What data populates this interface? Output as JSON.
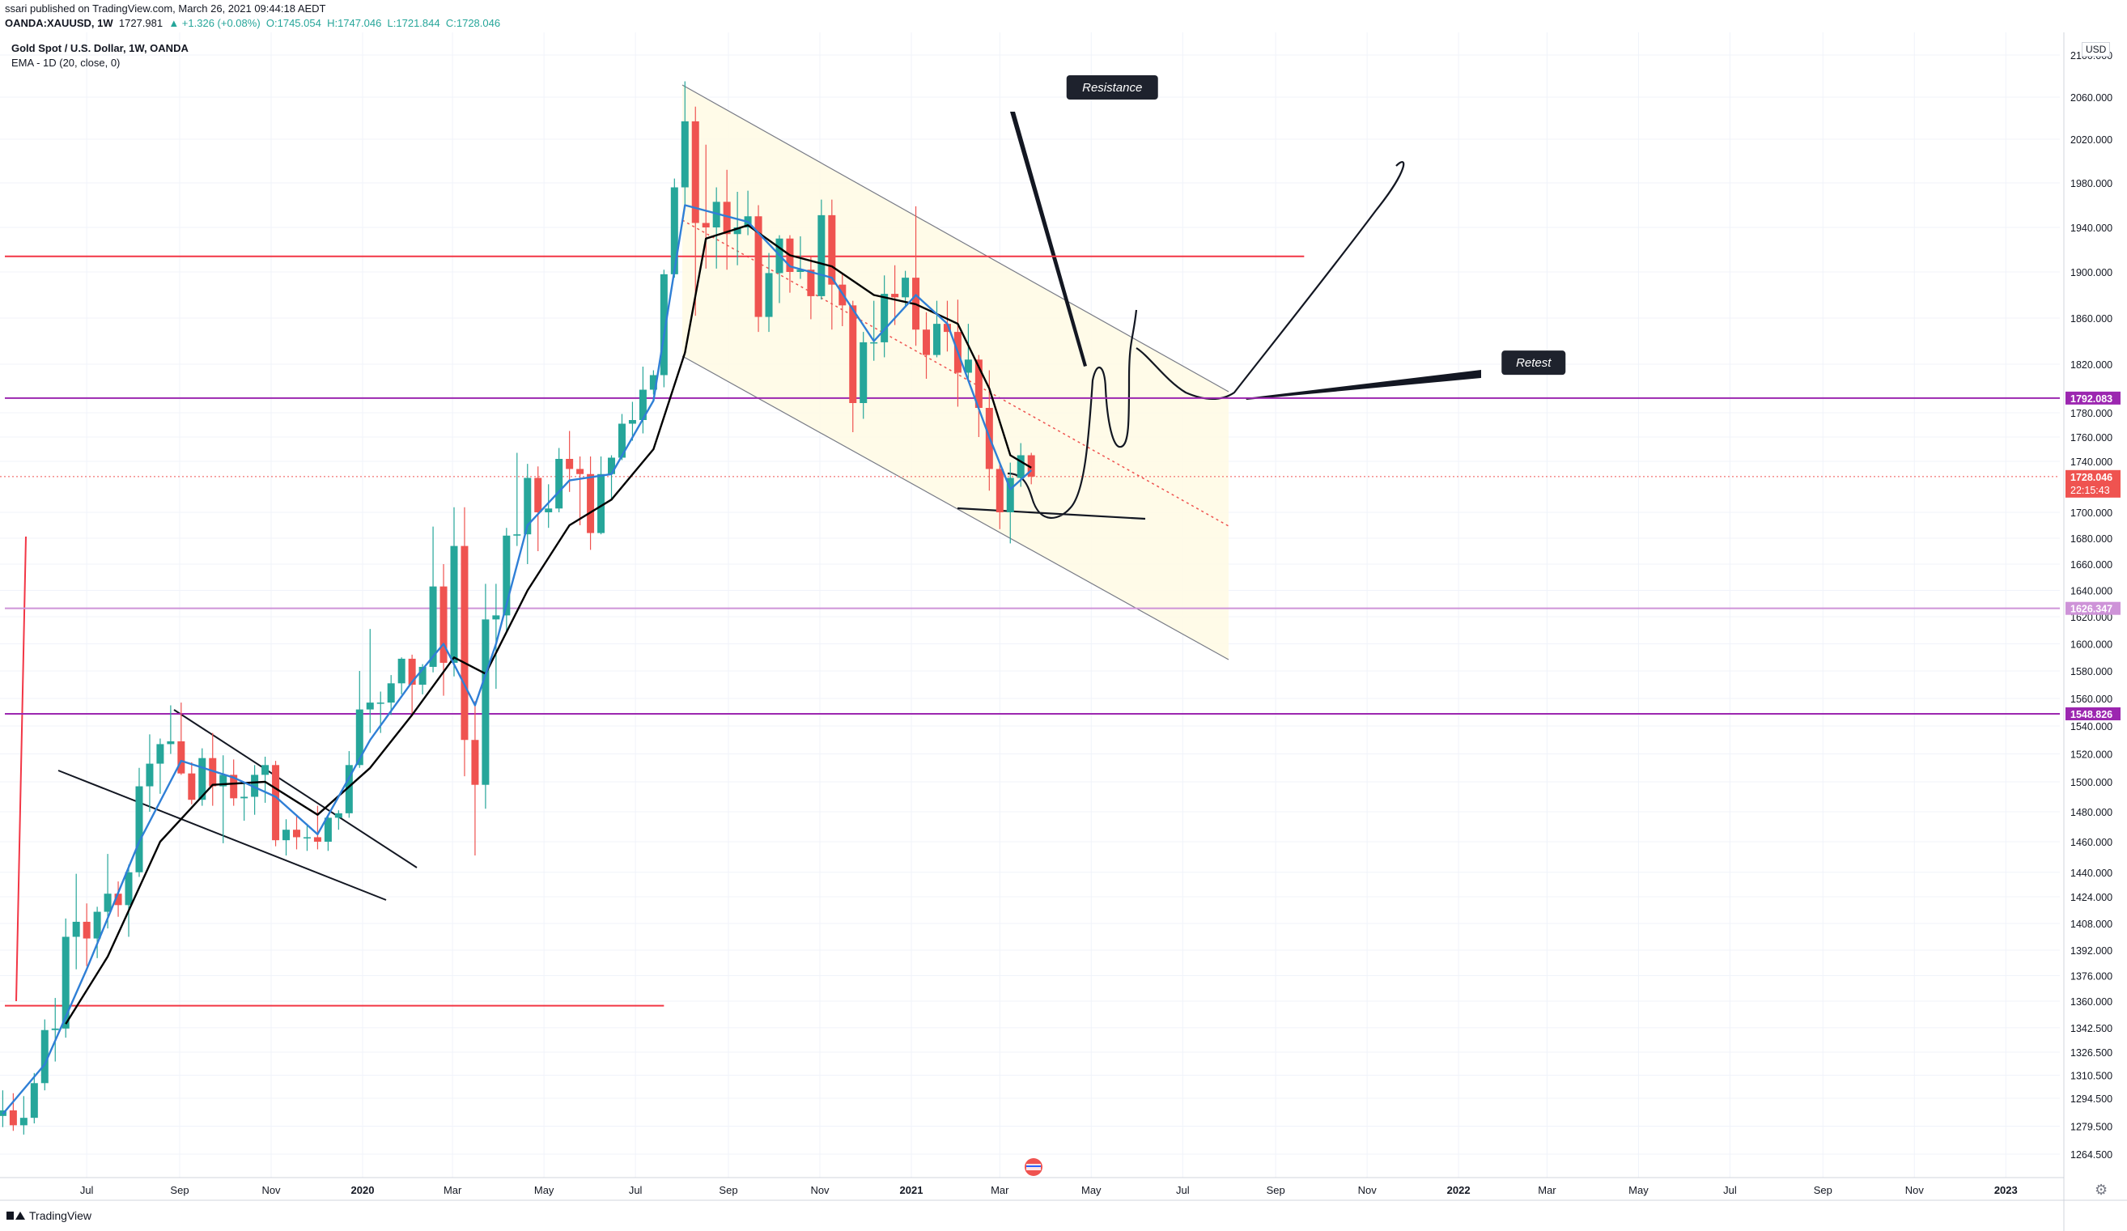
{
  "header": {
    "published": "ssari published on TradingView.com, March 26, 2021 09:44:18 AEDT",
    "symbol": "OANDA:XAUUSD, 1W",
    "last": "1727.981",
    "change": "▲ +1.326 (+0.08%)",
    "open": "O:1745.054",
    "high": "H:1747.046",
    "low": "L:1721.844",
    "close": "C:1728.046"
  },
  "legend": {
    "title": "Gold Spot / U.S. Dollar, 1W, OANDA",
    "ema": "EMA - 1D (20, close, 0)"
  },
  "footer": {
    "brand": "TradingView",
    "currency": "USD"
  },
  "colors": {
    "up": "#26a69a",
    "down": "#ef5350",
    "ema_fast": "#2f7fd6",
    "ema_slow": "#000000",
    "red_line": "#f23645",
    "purple_line": "#9c27b0",
    "channel_fill": "#fffbe6"
  },
  "chart_data": {
    "type": "candlestick",
    "y_axis_labels": [
      {
        "v": 2100,
        "t": "2100.000"
      },
      {
        "v": 2060,
        "t": "2060.000"
      },
      {
        "v": 2020,
        "t": "2020.000"
      },
      {
        "v": 1980,
        "t": "1980.000"
      },
      {
        "v": 1940,
        "t": "1940.000"
      },
      {
        "v": 1900,
        "t": "1900.000"
      },
      {
        "v": 1860,
        "t": "1860.000"
      },
      {
        "v": 1820,
        "t": "1820.000"
      },
      {
        "v": 1780,
        "t": "1780.000"
      },
      {
        "v": 1760,
        "t": "1760.000"
      },
      {
        "v": 1740,
        "t": "1740.000"
      },
      {
        "v": 1700,
        "t": "1700.000"
      },
      {
        "v": 1680,
        "t": "1680.000"
      },
      {
        "v": 1660,
        "t": "1660.000"
      },
      {
        "v": 1640,
        "t": "1640.000"
      },
      {
        "v": 1620,
        "t": "1620.000"
      },
      {
        "v": 1600,
        "t": "1600.000"
      },
      {
        "v": 1580,
        "t": "1580.000"
      },
      {
        "v": 1560,
        "t": "1560.000"
      },
      {
        "v": 1540,
        "t": "1540.000"
      },
      {
        "v": 1520,
        "t": "1520.000"
      },
      {
        "v": 1500,
        "t": "1500.000"
      },
      {
        "v": 1480,
        "t": "1480.000"
      },
      {
        "v": 1460,
        "t": "1460.000"
      },
      {
        "v": 1440,
        "t": "1440.000"
      },
      {
        "v": 1424,
        "t": "1424.000"
      },
      {
        "v": 1408,
        "t": "1408.000"
      },
      {
        "v": 1392,
        "t": "1392.000"
      },
      {
        "v": 1376,
        "t": "1376.000"
      },
      {
        "v": 1360,
        "t": "1360.000"
      },
      {
        "v": 1342.5,
        "t": "1342.500"
      },
      {
        "v": 1326.5,
        "t": "1326.500"
      },
      {
        "v": 1310.5,
        "t": "1310.500"
      },
      {
        "v": 1294.5,
        "t": "1294.500"
      },
      {
        "v": 1279.5,
        "t": "1279.500"
      },
      {
        "v": 1264.5,
        "t": "1264.500"
      }
    ],
    "x_axis_labels": [
      {
        "d": "2019-07-01",
        "t": "Jul"
      },
      {
        "d": "2019-09-01",
        "t": "Sep"
      },
      {
        "d": "2019-11-01",
        "t": "Nov"
      },
      {
        "d": "2020-01-01",
        "t": "2020",
        "bold": true
      },
      {
        "d": "2020-03-01",
        "t": "Mar"
      },
      {
        "d": "2020-05-01",
        "t": "May"
      },
      {
        "d": "2020-07-01",
        "t": "Jul"
      },
      {
        "d": "2020-09-01",
        "t": "Sep"
      },
      {
        "d": "2020-11-01",
        "t": "Nov"
      },
      {
        "d": "2021-01-01",
        "t": "2021",
        "bold": true
      },
      {
        "d": "2021-03-01",
        "t": "Mar"
      },
      {
        "d": "2021-05-01",
        "t": "May"
      },
      {
        "d": "2021-07-01",
        "t": "Jul"
      },
      {
        "d": "2021-09-01",
        "t": "Sep"
      },
      {
        "d": "2021-11-01",
        "t": "Nov"
      },
      {
        "d": "2022-01-01",
        "t": "2022",
        "bold": true
      },
      {
        "d": "2022-03-01",
        "t": "Mar"
      },
      {
        "d": "2022-05-01",
        "t": "May"
      },
      {
        "d": "2022-07-01",
        "t": "Jul"
      },
      {
        "d": "2022-09-01",
        "t": "Sep"
      },
      {
        "d": "2022-11-01",
        "t": "Nov"
      },
      {
        "d": "2023-01-01",
        "t": "2023",
        "bold": true
      }
    ],
    "price_tags": [
      {
        "v": 1792.083,
        "t": "1792.083",
        "color": "#9c27b0"
      },
      {
        "v": 1728.046,
        "t": "1728.046",
        "sub": "22:15:43",
        "color": "#ef5350"
      },
      {
        "v": 1626.347,
        "t": "1626.347",
        "color": "#ce93d8"
      },
      {
        "v": 1548.826,
        "t": "1548.826",
        "color": "#9c27b0"
      }
    ],
    "horizontal_lines": [
      {
        "v": 1914,
        "color": "#f23645",
        "from": "2018-12-01",
        "to": "2021-09-20"
      },
      {
        "v": 1792.083,
        "color": "#9c27b0",
        "from": "2018-12-01",
        "to": "2023-02-20"
      },
      {
        "v": 1626.347,
        "color": "#ce93d8",
        "from": "2018-12-01",
        "to": "2023-02-20"
      },
      {
        "v": 1548.826,
        "color": "#9c27b0",
        "from": "2018-12-01",
        "to": "2023-02-20"
      },
      {
        "v": 1357,
        "color": "#f23645",
        "from": "2018-12-01",
        "to": "2020-07-20"
      }
    ],
    "annotations": [
      {
        "text": "Resistance",
        "d": "2021-05-15",
        "v": 2070
      },
      {
        "text": "Retest",
        "d": "2022-02-20",
        "v": 1822
      }
    ],
    "candles": [
      [
        "2019-05-06",
        1285,
        1300,
        1279,
        1288
      ],
      [
        "2019-05-13",
        1288,
        1298,
        1277,
        1280
      ],
      [
        "2019-05-20",
        1280,
        1296,
        1275,
        1284
      ],
      [
        "2019-05-27",
        1284,
        1312,
        1281,
        1305
      ],
      [
        "2019-06-03",
        1305,
        1348,
        1300,
        1341
      ],
      [
        "2019-06-10",
        1341,
        1362,
        1320,
        1342
      ],
      [
        "2019-06-17",
        1342,
        1411,
        1336,
        1400
      ],
      [
        "2019-06-24",
        1400,
        1439,
        1380,
        1409
      ],
      [
        "2019-07-01",
        1409,
        1420,
        1382,
        1399
      ],
      [
        "2019-07-08",
        1399,
        1418,
        1387,
        1415
      ],
      [
        "2019-07-15",
        1415,
        1452,
        1405,
        1426
      ],
      [
        "2019-07-22",
        1426,
        1434,
        1412,
        1419
      ],
      [
        "2019-07-29",
        1419,
        1445,
        1400,
        1440
      ],
      [
        "2019-08-05",
        1440,
        1510,
        1437,
        1497
      ],
      [
        "2019-08-12",
        1497,
        1534,
        1480,
        1513
      ],
      [
        "2019-08-19",
        1513,
        1531,
        1492,
        1527
      ],
      [
        "2019-08-26",
        1527,
        1555,
        1520,
        1529
      ],
      [
        "2019-09-02",
        1529,
        1557,
        1505,
        1506
      ],
      [
        "2019-09-09",
        1506,
        1514,
        1485,
        1488
      ],
      [
        "2019-09-16",
        1488,
        1524,
        1484,
        1517
      ],
      [
        "2019-09-23",
        1517,
        1535,
        1484,
        1497
      ],
      [
        "2019-09-30",
        1497,
        1519,
        1459,
        1505
      ],
      [
        "2019-10-07",
        1505,
        1516,
        1484,
        1489
      ],
      [
        "2019-10-14",
        1489,
        1500,
        1474,
        1490
      ],
      [
        "2019-10-21",
        1490,
        1512,
        1478,
        1505
      ],
      [
        "2019-10-28",
        1505,
        1518,
        1486,
        1512
      ],
      [
        "2019-11-04",
        1512,
        1515,
        1457,
        1461
      ],
      [
        "2019-11-11",
        1461,
        1475,
        1451,
        1468
      ],
      [
        "2019-11-18",
        1468,
        1478,
        1455,
        1463
      ],
      [
        "2019-11-25",
        1463,
        1472,
        1454,
        1463
      ],
      [
        "2019-12-02",
        1463,
        1484,
        1455,
        1460
      ],
      [
        "2019-12-09",
        1460,
        1478,
        1454,
        1476
      ],
      [
        "2019-12-16",
        1476,
        1481,
        1468,
        1479
      ],
      [
        "2019-12-23",
        1479,
        1522,
        1476,
        1512
      ],
      [
        "2019-12-30",
        1512,
        1580,
        1510,
        1552
      ],
      [
        "2020-01-06",
        1552,
        1611,
        1535,
        1557
      ],
      [
        "2020-01-13",
        1557,
        1565,
        1535,
        1557
      ],
      [
        "2020-01-20",
        1557,
        1577,
        1548,
        1571
      ],
      [
        "2020-01-27",
        1571,
        1590,
        1563,
        1589
      ],
      [
        "2020-02-03",
        1589,
        1592,
        1547,
        1570
      ],
      [
        "2020-02-10",
        1570,
        1585,
        1563,
        1583
      ],
      [
        "2020-02-17",
        1583,
        1689,
        1579,
        1643
      ],
      [
        "2020-02-24",
        1643,
        1660,
        1562,
        1586
      ],
      [
        "2020-03-02",
        1586,
        1704,
        1576,
        1674
      ],
      [
        "2020-03-09",
        1674,
        1704,
        1504,
        1530
      ],
      [
        "2020-03-16",
        1530,
        1558,
        1451,
        1498
      ],
      [
        "2020-03-23",
        1498,
        1645,
        1482,
        1618
      ],
      [
        "2020-03-30",
        1618,
        1645,
        1567,
        1621
      ],
      [
        "2020-04-06",
        1621,
        1688,
        1609,
        1682
      ],
      [
        "2020-04-13",
        1682,
        1747,
        1674,
        1683
      ],
      [
        "2020-04-20",
        1683,
        1738,
        1660,
        1727
      ],
      [
        "2020-04-27",
        1727,
        1736,
        1670,
        1700
      ],
      [
        "2020-05-04",
        1700,
        1722,
        1688,
        1703
      ],
      [
        "2020-05-11",
        1703,
        1751,
        1700,
        1742
      ],
      [
        "2020-05-18",
        1742,
        1765,
        1716,
        1734
      ],
      [
        "2020-05-25",
        1734,
        1744,
        1690,
        1730
      ],
      [
        "2020-06-01",
        1730,
        1744,
        1671,
        1684
      ],
      [
        "2020-06-08",
        1684,
        1744,
        1683,
        1730
      ],
      [
        "2020-06-15",
        1730,
        1745,
        1710,
        1743
      ],
      [
        "2020-06-22",
        1743,
        1779,
        1741,
        1771
      ],
      [
        "2020-06-29",
        1771,
        1789,
        1757,
        1774
      ],
      [
        "2020-07-06",
        1774,
        1818,
        1763,
        1799
      ],
      [
        "2020-07-13",
        1799,
        1815,
        1795,
        1811
      ],
      [
        "2020-07-20",
        1811,
        1902,
        1801,
        1898
      ],
      [
        "2020-07-27",
        1898,
        1984,
        1895,
        1976
      ],
      [
        "2020-08-03",
        1976,
        2075,
        1960,
        2037
      ],
      [
        "2020-08-10",
        2037,
        2051,
        1862,
        1944
      ],
      [
        "2020-08-17",
        1944,
        2015,
        1903,
        1940
      ],
      [
        "2020-08-24",
        1940,
        1976,
        1903,
        1963
      ],
      [
        "2020-08-31",
        1963,
        1992,
        1902,
        1934
      ],
      [
        "2020-09-07",
        1934,
        1972,
        1906,
        1940
      ],
      [
        "2020-09-14",
        1940,
        1973,
        1933,
        1950
      ],
      [
        "2020-09-21",
        1950,
        1960,
        1848,
        1861
      ],
      [
        "2020-09-28",
        1861,
        1917,
        1848,
        1899
      ],
      [
        "2020-10-05",
        1899,
        1933,
        1873,
        1930
      ],
      [
        "2020-10-12",
        1930,
        1933,
        1882,
        1900
      ],
      [
        "2020-10-19",
        1900,
        1932,
        1894,
        1902
      ],
      [
        "2020-10-26",
        1902,
        1914,
        1859,
        1879
      ],
      [
        "2020-11-02",
        1879,
        1965,
        1876,
        1951
      ],
      [
        "2020-11-09",
        1951,
        1965,
        1850,
        1889
      ],
      [
        "2020-11-16",
        1889,
        1898,
        1853,
        1871
      ],
      [
        "2020-11-23",
        1871,
        1875,
        1764,
        1788
      ],
      [
        "2020-11-30",
        1788,
        1848,
        1775,
        1839
      ],
      [
        "2020-12-07",
        1839,
        1875,
        1823,
        1839
      ],
      [
        "2020-12-14",
        1839,
        1897,
        1826,
        1881
      ],
      [
        "2020-12-21",
        1881,
        1906,
        1854,
        1878
      ],
      [
        "2020-12-28",
        1878,
        1901,
        1870,
        1895
      ],
      [
        "2021-01-04",
        1895,
        1959,
        1836,
        1850
      ],
      [
        "2021-01-11",
        1850,
        1865,
        1808,
        1828
      ],
      [
        "2021-01-18",
        1828,
        1875,
        1826,
        1855
      ],
      [
        "2021-01-25",
        1855,
        1875,
        1831,
        1848
      ],
      [
        "2021-02-01",
        1848,
        1876,
        1785,
        1813
      ],
      [
        "2021-02-08",
        1813,
        1855,
        1808,
        1824
      ],
      [
        "2021-02-15",
        1824,
        1828,
        1760,
        1784
      ],
      [
        "2021-02-22",
        1784,
        1815,
        1717,
        1734
      ],
      [
        "2021-03-01",
        1734,
        1738,
        1687,
        1700
      ],
      [
        "2021-03-08",
        1700,
        1739,
        1676,
        1727
      ],
      [
        "2021-03-15",
        1727,
        1755,
        1720,
        1745
      ],
      [
        "2021-03-22",
        1745,
        1747,
        1722,
        1728
      ]
    ],
    "ema_fast": [
      [
        "2019-05-06",
        1286
      ],
      [
        "2019-06-03",
        1318
      ],
      [
        "2019-07-01",
        1380
      ],
      [
        "2019-08-05",
        1460
      ],
      [
        "2019-09-02",
        1515
      ],
      [
        "2019-10-07",
        1503
      ],
      [
        "2019-11-04",
        1490
      ],
      [
        "2019-12-02",
        1465
      ],
      [
        "2020-01-06",
        1530
      ],
      [
        "2020-02-03",
        1572
      ],
      [
        "2020-02-24",
        1600
      ],
      [
        "2020-03-16",
        1555
      ],
      [
        "2020-03-30",
        1600
      ],
      [
        "2020-04-20",
        1690
      ],
      [
        "2020-05-18",
        1725
      ],
      [
        "2020-06-15",
        1730
      ],
      [
        "2020-07-13",
        1790
      ],
      [
        "2020-08-03",
        1960
      ],
      [
        "2020-08-17",
        1955
      ],
      [
        "2020-09-14",
        1945
      ],
      [
        "2020-10-12",
        1905
      ],
      [
        "2020-11-09",
        1895
      ],
      [
        "2020-12-07",
        1840
      ],
      [
        "2021-01-04",
        1880
      ],
      [
        "2021-01-25",
        1855
      ],
      [
        "2021-02-22",
        1760
      ],
      [
        "2021-03-08",
        1718
      ],
      [
        "2021-03-22",
        1733
      ]
    ],
    "ema_slow": [
      [
        "2019-06-17",
        1345
      ],
      [
        "2019-07-15",
        1388
      ],
      [
        "2019-08-19",
        1460
      ],
      [
        "2019-09-23",
        1498
      ],
      [
        "2019-10-28",
        1500
      ],
      [
        "2019-12-02",
        1478
      ],
      [
        "2020-01-06",
        1510
      ],
      [
        "2020-02-03",
        1548
      ],
      [
        "2020-03-02",
        1590
      ],
      [
        "2020-03-23",
        1578
      ],
      [
        "2020-04-20",
        1640
      ],
      [
        "2020-05-18",
        1690
      ],
      [
        "2020-06-15",
        1710
      ],
      [
        "2020-07-13",
        1750
      ],
      [
        "2020-08-03",
        1830
      ],
      [
        "2020-08-17",
        1930
      ],
      [
        "2020-09-14",
        1942
      ],
      [
        "2020-10-12",
        1915
      ],
      [
        "2020-11-09",
        1905
      ],
      [
        "2020-12-07",
        1880
      ],
      [
        "2021-01-04",
        1872
      ],
      [
        "2021-02-01",
        1855
      ],
      [
        "2021-02-22",
        1800
      ],
      [
        "2021-03-08",
        1745
      ],
      [
        "2021-03-22",
        1735
      ]
    ]
  }
}
